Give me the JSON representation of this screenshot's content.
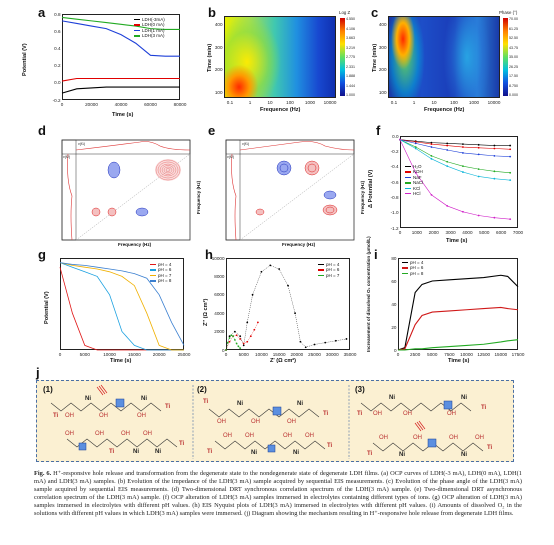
{
  "panels": {
    "a": {
      "label": "a",
      "xlabel": "Time (s)",
      "ylabel": "Potential (V)",
      "xticks": [
        "0",
        "20000",
        "40000",
        "60000",
        "80000"
      ],
      "yticks": [
        "0.8",
        "0.6",
        "0.4",
        "0.2",
        "0.0",
        "-0.2"
      ],
      "legend": [
        "LDH(-3mA)",
        "LDH(0 mA)",
        "LDH(1 mA)",
        "LDH(3 mA)"
      ],
      "colors": [
        "#000000",
        "#e00000",
        "#1d3fd8",
        "#22aa22"
      ]
    },
    "b": {
      "label": "b",
      "xlabel": "Frequence (Hz)",
      "ylabel": "Time (min)",
      "xticks": [
        "0.1",
        "1",
        "10",
        "100",
        "1000",
        "10000"
      ],
      "yticks": [
        "400",
        "300",
        "200",
        "100"
      ],
      "cbar_title": "Log Z",
      "cbar_ticks": [
        "4.550",
        "4.106",
        "3.663",
        "3.219",
        "2.775",
        "2.331",
        "1.888",
        "1.444",
        "1.000"
      ]
    },
    "c": {
      "label": "c",
      "xlabel": "Frequence (Hz)",
      "ylabel": "Time (min)",
      "xticks": [
        "0.1",
        "1",
        "10",
        "100",
        "1000",
        "10000"
      ],
      "yticks": [
        "400",
        "300",
        "200",
        "100"
      ],
      "cbar_title": "Phase (°)",
      "cbar_ticks": [
        "70.00",
        "61.25",
        "52.50",
        "43.75",
        "35.00",
        "26.25",
        "17.50",
        "8.750",
        "0.000"
      ]
    },
    "d": {
      "label": "d",
      "xlabel": "Frequency (Hz)",
      "ylabel": "Frequency (Hz)",
      "x_axis_name": "v(f1)",
      "y_axis_name": "v(f2)"
    },
    "e": {
      "label": "e",
      "xlabel": "Frequency (Hz)",
      "ylabel": "Frequency (Hz)",
      "x_axis_name": "v(f1)",
      "y_axis_name": "v(f2)"
    },
    "f": {
      "label": "f",
      "xlabel": "Time (s)",
      "ylabel": "Δ Potential (V)",
      "xticks": [
        "0",
        "1000",
        "2000",
        "3000",
        "4000",
        "5000",
        "6000",
        "7000"
      ],
      "yticks": [
        "0.0",
        "-0.2",
        "-0.4",
        "-0.6",
        "-0.8",
        "-1.0",
        "-1.2"
      ],
      "legend": [
        "H₂O",
        "KOH",
        "NaF",
        "NaCl",
        "KCl",
        "HCl"
      ],
      "colors": [
        "#000000",
        "#e00000",
        "#1d3fd8",
        "#22aa22",
        "#0bb5d8",
        "#d020c8"
      ]
    },
    "g": {
      "label": "g",
      "xlabel": "Time (s)",
      "ylabel": "Potential (V)",
      "xticks": [
        "0",
        "5000",
        "10000",
        "15000",
        "20000",
        "25000"
      ],
      "legend": [
        "pH = 4",
        "pH = 6",
        "pH = 7",
        "pH = 8"
      ],
      "colors": [
        "#e01818",
        "#1aa0e0",
        "#f0b000",
        "#3a7fd0"
      ]
    },
    "h": {
      "label": "h",
      "xlabel": "Z' (Ω cm²)",
      "ylabel": "Z'' (Ω cm²)",
      "xticks": [
        "0",
        "5000",
        "10000",
        "15000",
        "20000",
        "25000",
        "30000",
        "35000"
      ],
      "yticks": [
        "10000",
        "8000",
        "6000",
        "4000",
        "2000",
        "0"
      ],
      "legend": [
        "pH = 4",
        "pH = 6",
        "pH = 7"
      ],
      "colors": [
        "#000000",
        "#e00000",
        "#22aa22"
      ]
    },
    "i": {
      "label": "i",
      "xlabel": "Time (s)",
      "ylabel": "Increasement of dissolved O₂ concentration (μmol/L)",
      "xticks": [
        "0",
        "2500",
        "5000",
        "7500",
        "10000",
        "12500",
        "15000",
        "17500"
      ],
      "yticks": [
        "80",
        "60",
        "40",
        "20",
        "0"
      ],
      "legend": [
        "pH = 4",
        "pH = 6",
        "pH = 8"
      ],
      "colors": [
        "#000000",
        "#d01818",
        "#22aa22"
      ]
    },
    "j": {
      "label": "j",
      "sub1": "(1)",
      "sub2": "(2)",
      "sub3": "(3)",
      "ti": "Ti",
      "ni": "Ni",
      "oh": "OH"
    }
  },
  "chart_data": [
    {
      "type": "line",
      "panel": "a",
      "x": [
        0,
        10000,
        20000,
        30000,
        40000,
        50000,
        60000,
        70000,
        80000
      ],
      "series": [
        {
          "name": "LDH(-3mA)",
          "values": [
            -0.12,
            -0.07,
            -0.06,
            -0.05,
            -0.05,
            -0.05,
            -0.05,
            -0.05,
            -0.05
          ]
        },
        {
          "name": "LDH(0 mA)",
          "values": [
            0.02,
            0.05,
            0.05,
            0.05,
            0.05,
            0.05,
            0.05,
            0.05,
            0.05
          ]
        },
        {
          "name": "LDH(1 mA)",
          "values": [
            0.72,
            0.69,
            0.66,
            0.63,
            0.56,
            0.46,
            0.32,
            0.31,
            0.31
          ]
        },
        {
          "name": "LDH(3 mA)",
          "values": [
            0.76,
            0.74,
            0.72,
            0.7,
            0.68,
            0.66,
            0.63,
            0.62,
            0.62
          ]
        }
      ],
      "xlim": [
        0,
        80000
      ],
      "ylim": [
        -0.2,
        0.8
      ]
    },
    {
      "type": "line",
      "panel": "f",
      "x": [
        0,
        1000,
        2000,
        3000,
        4000,
        5000,
        6000,
        7000
      ],
      "series": [
        {
          "name": "H₂O",
          "values": [
            0.0,
            -0.02,
            -0.04,
            -0.05,
            -0.06,
            -0.07,
            -0.08,
            -0.08
          ]
        },
        {
          "name": "KOH",
          "values": [
            0.0,
            -0.03,
            -0.06,
            -0.08,
            -0.1,
            -0.11,
            -0.12,
            -0.13
          ]
        },
        {
          "name": "NaF",
          "values": [
            0.0,
            -0.05,
            -0.1,
            -0.14,
            -0.18,
            -0.2,
            -0.22,
            -0.23
          ]
        },
        {
          "name": "NaCl",
          "values": [
            0.0,
            -0.1,
            -0.22,
            -0.3,
            -0.36,
            -0.4,
            -0.43,
            -0.45
          ]
        },
        {
          "name": "KCl",
          "values": [
            0.0,
            -0.12,
            -0.26,
            -0.36,
            -0.44,
            -0.5,
            -0.53,
            -0.55
          ]
        },
        {
          "name": "HCl",
          "values": [
            0.0,
            -0.45,
            -0.75,
            -0.9,
            -0.98,
            -1.03,
            -1.06,
            -1.08
          ]
        }
      ],
      "xlim": [
        0,
        7500
      ],
      "ylim": [
        -1.2,
        0.05
      ]
    },
    {
      "type": "line",
      "panel": "g",
      "x": [
        0,
        2500,
        5000,
        7500,
        10000,
        12500,
        15000,
        17500,
        20000,
        22500,
        25000
      ],
      "series": [
        {
          "name": "pH = 4",
          "values": [
            0.9,
            0.4,
            0.05,
            0.0,
            0.0,
            0.0,
            0.0,
            0.0,
            0.0,
            0.0,
            0.0
          ]
        },
        {
          "name": "pH = 6",
          "values": [
            0.95,
            0.9,
            0.85,
            0.8,
            0.6,
            0.2,
            0.05,
            0.0,
            0.0,
            0.0,
            0.0
          ]
        },
        {
          "name": "pH = 7",
          "values": [
            0.95,
            0.92,
            0.9,
            0.88,
            0.85,
            0.8,
            0.7,
            0.4,
            0.05,
            0.0,
            0.0
          ]
        },
        {
          "name": "pH = 8",
          "values": [
            0.95,
            0.93,
            0.92,
            0.9,
            0.88,
            0.86,
            0.83,
            0.78,
            0.6,
            0.3,
            0.05
          ]
        }
      ],
      "xlim": [
        0,
        25000
      ],
      "ylim": [
        0,
        1
      ]
    },
    {
      "type": "scatter",
      "panel": "h",
      "series": [
        {
          "name": "pH = 4",
          "x": [
            0,
            1000,
            2500,
            4000,
            5000,
            6000,
            7500,
            10000,
            12500,
            15000,
            17500,
            19500,
            21000,
            22500,
            25000,
            28000,
            31000,
            34000
          ],
          "values": [
            0,
            1500,
            2000,
            1500,
            500,
            3000,
            6000,
            8500,
            9200,
            8800,
            7000,
            4000,
            900,
            300,
            600,
            800,
            1000,
            1200
          ]
        },
        {
          "name": "pH = 6",
          "x": [
            0,
            1000,
            2000,
            3000,
            4000,
            5000,
            6000,
            7000,
            8000,
            9000
          ],
          "values": [
            0,
            900,
            1500,
            1600,
            1200,
            700,
            900,
            1500,
            2200,
            3000
          ]
        },
        {
          "name": "pH = 7",
          "x": [
            0,
            500,
            1000,
            1500,
            2000,
            2500,
            3000,
            3500,
            4000
          ],
          "values": [
            0,
            800,
            1300,
            1600,
            1500,
            1100,
            700,
            400,
            200
          ]
        }
      ],
      "xlim": [
        0,
        35000
      ],
      "ylim": [
        0,
        10000
      ]
    },
    {
      "type": "line",
      "panel": "i",
      "x": [
        0,
        1000,
        2500,
        3500,
        5000,
        7500,
        10000,
        12500,
        15000,
        16000,
        17500
      ],
      "series": [
        {
          "name": "pH = 4",
          "values": [
            0,
            2,
            50,
            57,
            60,
            61,
            62,
            63,
            65,
            64,
            55
          ]
        },
        {
          "name": "pH = 6",
          "values": [
            0,
            1,
            22,
            30,
            33,
            34,
            35,
            36,
            37,
            36,
            35
          ]
        },
        {
          "name": "pH = 8",
          "values": [
            0,
            0,
            1,
            1,
            2,
            3,
            4,
            5,
            7,
            8,
            9
          ]
        }
      ],
      "xlim": [
        0,
        17500
      ],
      "ylim": [
        0,
        80
      ]
    }
  ],
  "caption": {
    "fig_label": "Fig. 6.",
    "text": "H⁺-responsive hole release and transformation from the degenerate state to the nondegenerate state of degenerate LDH films. (a) OCP curves of LDH(-3 mA), LDH(0 mA), LDH(1 mA) and LDH(3 mA) samples. (b) Evolution of the impedance of the LDH(3 mA) sample acquired by sequential EIS measurements. (c) Evolution of the phase angle of the LDH(3 mA) sample acquired by sequential EIS measurements. (d) Two-dimensional DRT synchronous correlation spectrum of the LDH(3 mA) sample. (e) Two-dimensional DRT asynchronous correlation spectrum of the LDH(3 mA) sample. (f) OCP alteration of LDH(3 mA) samples immersed in electrolytes containing different types of ions. (g) OCP alteration of LDH(3 mA) samples immersed in electrolytes with different pH values. (h) EIS Nyquist plots of LDH(3 mA) immersed in electrolytes with different pH values. (i) Amounts of dissolved O₂ in the solutions with different pH values in which LDH(3 mA) samples were immersed. (j) Diagram showing the mechanism resulting in H⁺-responsive hole release from degenerate LDH films."
  }
}
